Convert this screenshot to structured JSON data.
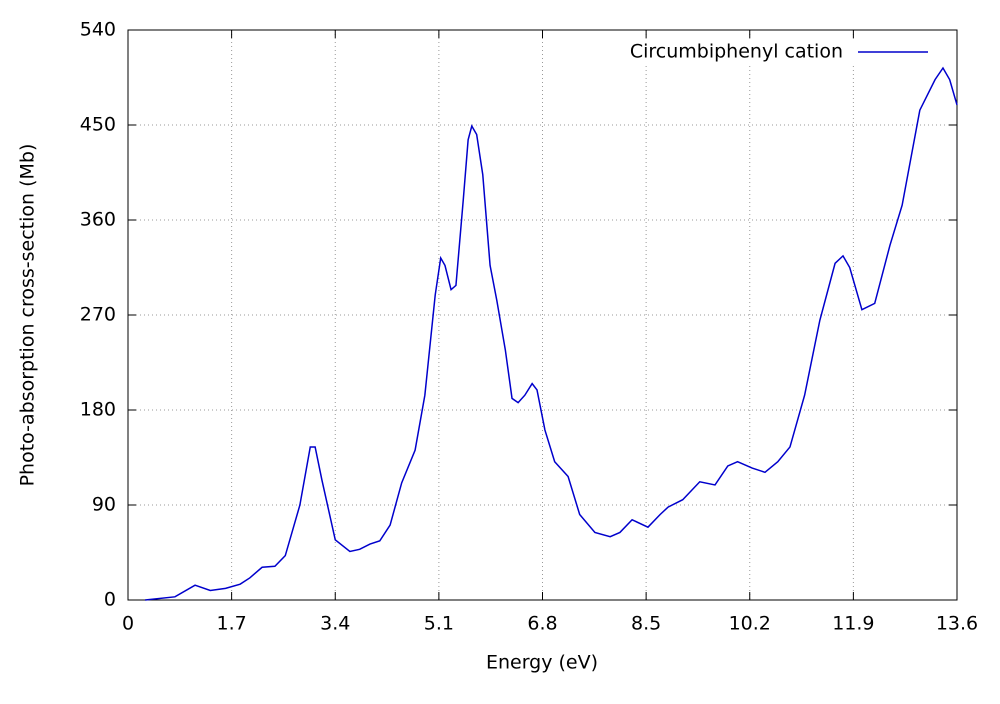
{
  "chart_data": {
    "type": "line",
    "xlabel": "Energy (eV)",
    "ylabel": "Photo-absorption cross-section (Mb)",
    "xlim": [
      0,
      13.6
    ],
    "xticks": [
      0,
      1.7,
      3.4,
      5.1,
      6.8,
      8.5,
      10.2,
      11.9,
      13.6
    ],
    "ylim": [
      0,
      540
    ],
    "yticks": [
      0,
      90,
      180,
      270,
      360,
      450,
      540
    ],
    "grid": true,
    "legend": "upper right",
    "x": [
      0.28,
      0.77,
      1.1,
      1.35,
      1.6,
      1.84,
      2.0,
      2.2,
      2.41,
      2.58,
      2.82,
      2.99,
      3.07,
      3.18,
      3.4,
      3.64,
      3.8,
      3.97,
      4.13,
      4.3,
      4.49,
      4.71,
      4.87,
      5.04,
      5.13,
      5.2,
      5.3,
      5.38,
      5.5,
      5.58,
      5.64,
      5.72,
      5.82,
      5.94,
      6.05,
      6.19,
      6.3,
      6.4,
      6.51,
      6.63,
      6.71,
      6.84,
      7.0,
      7.22,
      7.41,
      7.66,
      7.91,
      8.07,
      8.27,
      8.53,
      8.73,
      8.86,
      9.1,
      9.38,
      9.63,
      9.84,
      10.0,
      10.24,
      10.45,
      10.66,
      10.86,
      11.1,
      11.35,
      11.6,
      11.73,
      11.84,
      12.04,
      12.25,
      12.5,
      12.7,
      12.99,
      13.24,
      13.37,
      13.48,
      13.6
    ],
    "series": [
      {
        "name": "Circumbiphenyl cation",
        "color": "#0000cc",
        "values": [
          0,
          3,
          14,
          9,
          11,
          15,
          21,
          31,
          32,
          42,
          90,
          145,
          145,
          114,
          57,
          46,
          48,
          53,
          56,
          71,
          111,
          142,
          194,
          289,
          324,
          317,
          294,
          298,
          379,
          436,
          449,
          441,
          403,
          317,
          284,
          237,
          191,
          187,
          194,
          205,
          199,
          161,
          131,
          117,
          81,
          64,
          60,
          64,
          76,
          69,
          81,
          88,
          95,
          112,
          109,
          127,
          131,
          125,
          121,
          131,
          145,
          194,
          265,
          319,
          326,
          315,
          275,
          281,
          336,
          374,
          464,
          493,
          504,
          493,
          469
        ]
      }
    ]
  }
}
